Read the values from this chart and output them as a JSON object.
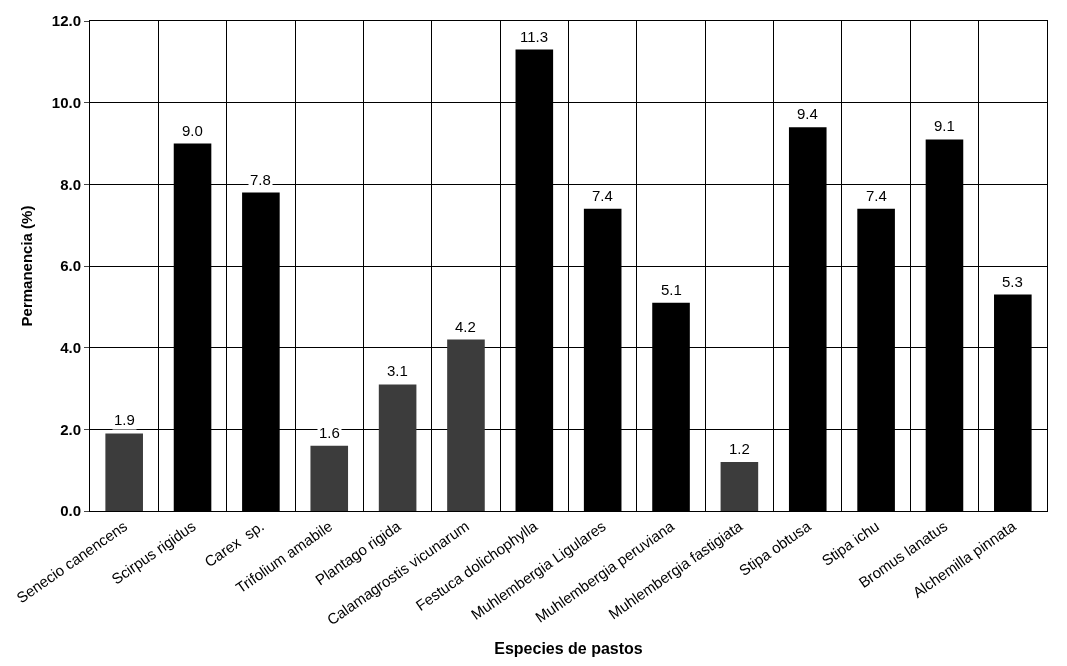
{
  "chart_data": {
    "type": "bar",
    "xlabel": "Especies de pastos",
    "ylabel": "Permanencia (%)",
    "categories": [
      "Senecio canencens",
      "Scirpus rigidus",
      "Carex  sp.",
      "Trifolium amabile",
      "Plantago rigida",
      "Calamagrostis vicunarum",
      "Festuca dolichophylla",
      "Muhlembergia Ligulares",
      "Muhlembergia peruviana",
      "Muhlembergia fastigiata",
      "Stipa obtusa",
      "Stipa ichu",
      "Bromus lanatus",
      "Alchemilla pinnata"
    ],
    "values": [
      1.9,
      9.0,
      7.8,
      1.6,
      3.1,
      4.2,
      11.3,
      7.4,
      5.1,
      1.2,
      9.4,
      7.4,
      9.1,
      5.3
    ],
    "value_labels": [
      "1.9",
      "9.0",
      "7.8",
      "1.6",
      "3.1",
      "4.2",
      "11.3",
      "7.4",
      "5.1",
      "1.2",
      "9.4",
      "7.4",
      "9.1",
      "5.3"
    ],
    "colors": [
      "#3c3c3c",
      "#000000",
      "#000000",
      "#3c3c3c",
      "#3c3c3c",
      "#3c3c3c",
      "#000000",
      "#000000",
      "#000000",
      "#3c3c3c",
      "#000000",
      "#000000",
      "#000000",
      "#000000"
    ],
    "ylim": [
      0,
      12
    ],
    "yticks": [
      {
        "value": 0,
        "label": "0.0"
      },
      {
        "value": 2,
        "label": "2.0"
      },
      {
        "value": 4,
        "label": "4.0"
      },
      {
        "value": 6,
        "label": "6.0"
      },
      {
        "value": 8,
        "label": "8.0"
      },
      {
        "value": 10,
        "label": "10.0"
      },
      {
        "value": 12,
        "label": "12.0"
      }
    ],
    "grid": true
  }
}
